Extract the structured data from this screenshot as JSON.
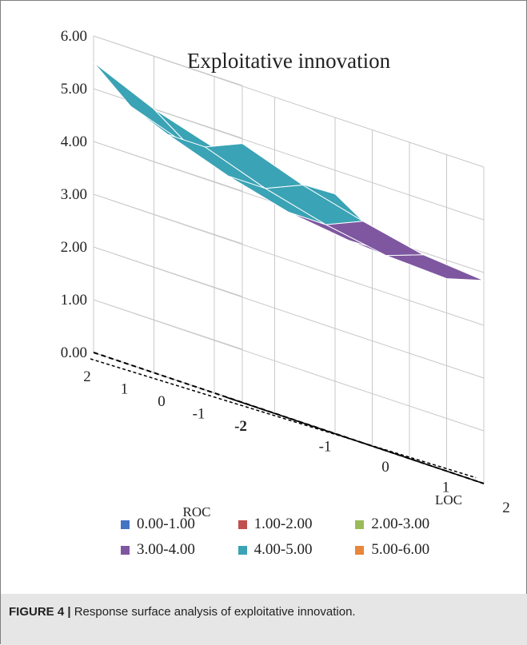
{
  "chart_data": {
    "type": "surface",
    "title": "Exploitative innovation",
    "xlabel": "ROC",
    "ylabel": "LOC",
    "x_ticks": [
      "2",
      "1",
      "0",
      "-1",
      "-2"
    ],
    "y_ticks": [
      "-1",
      "0",
      "1",
      "2"
    ],
    "z_ticks": [
      "0.00",
      "1.00",
      "2.00",
      "3.00",
      "4.00",
      "5.00",
      "6.00"
    ],
    "zlim": [
      0,
      6
    ],
    "x": [
      2,
      1,
      0,
      -1,
      -2
    ],
    "y": [
      -2,
      -1,
      0,
      1,
      2
    ],
    "z": [
      [
        5.5,
        5.0,
        4.65,
        4.5,
        4.55
      ],
      [
        4.9,
        4.5,
        4.2,
        4.05,
        4.1
      ],
      [
        4.6,
        4.2,
        3.9,
        3.75,
        3.8
      ],
      [
        4.6,
        4.2,
        3.9,
        3.7,
        3.65
      ],
      [
        4.9,
        4.5,
        4.2,
        3.95,
        3.85
      ]
    ],
    "legend": [
      {
        "label": "0.00-1.00",
        "color": "#4472c4"
      },
      {
        "label": "1.00-2.00",
        "color": "#c0504d"
      },
      {
        "label": "2.00-3.00",
        "color": "#9bbb59"
      },
      {
        "label": "3.00-4.00",
        "color": "#7e57a0"
      },
      {
        "label": "4.00-5.00",
        "color": "#3aa3b5"
      },
      {
        "label": "5.00-6.00",
        "color": "#e8863a"
      }
    ],
    "grid": true
  },
  "caption": {
    "label": "FIGURE 4 |",
    "text": " Response surface analysis of exploitative innovation."
  }
}
